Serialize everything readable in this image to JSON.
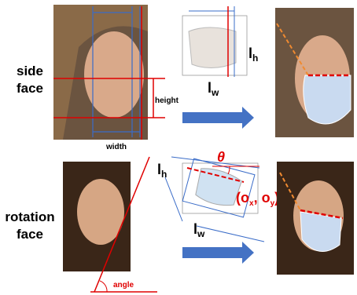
{
  "side": {
    "label_line1": "side",
    "label_line2": "face",
    "height": "height",
    "width": "width",
    "lh": {
      "base": "l",
      "sub": "h"
    },
    "lw": {
      "base": "l",
      "sub": "w"
    }
  },
  "rotation": {
    "label_line1": "rotation",
    "label_line2": "face",
    "theta": "θ",
    "origin": {
      "open": "(o",
      "x": "x",
      "mid": ", o",
      "y": "y",
      "close": ")"
    },
    "lh": {
      "base": "l",
      "sub": "h"
    },
    "lw": {
      "base": "l",
      "sub": "w"
    },
    "angle": "angle"
  }
}
